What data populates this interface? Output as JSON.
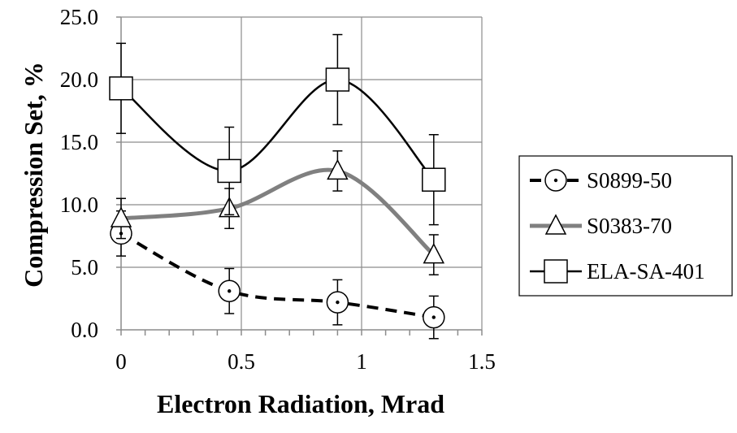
{
  "chart_data": {
    "type": "line",
    "title": "",
    "xlabel": "Electron Radiation, Mrad",
    "ylabel": "Compression Set, %",
    "xlim": [
      0,
      1.5
    ],
    "ylim": [
      0,
      25
    ],
    "x_ticks": [
      0,
      0.5,
      1,
      1.5
    ],
    "x_tick_labels": [
      "0",
      "0.5",
      "1",
      "1.5"
    ],
    "y_ticks": [
      0,
      5,
      10,
      15,
      20,
      25
    ],
    "y_tick_labels": [
      "0.0",
      "5.0",
      "10.0",
      "15.0",
      "20.0",
      "25.0"
    ],
    "grid": true,
    "legend_position": "right",
    "x": [
      0,
      0.45,
      0.9,
      1.3
    ],
    "series": [
      {
        "name": "S0899-50",
        "values": [
          7.7,
          3.1,
          2.2,
          1.0
        ],
        "error": [
          1.8,
          1.8,
          1.8,
          1.7
        ],
        "color": "#000000",
        "line_style": "dashed",
        "marker": "circle"
      },
      {
        "name": "S0383-70",
        "values": [
          8.9,
          9.7,
          12.7,
          6.0
        ],
        "error": [
          1.6,
          1.6,
          1.6,
          1.6
        ],
        "color": "#808080",
        "line_style": "solid",
        "marker": "triangle"
      },
      {
        "name": "ELA-SA-401",
        "values": [
          19.3,
          12.7,
          20.0,
          12.0
        ],
        "error": [
          3.6,
          3.5,
          3.6,
          3.6
        ],
        "color": "#000000",
        "line_style": "solid",
        "marker": "square"
      }
    ]
  }
}
